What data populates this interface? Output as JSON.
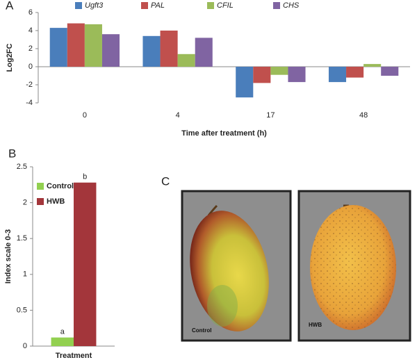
{
  "chart_data": [
    {
      "type": "bar",
      "panel": "A",
      "categories": [
        "0",
        "4",
        "17",
        "48"
      ],
      "series": [
        {
          "name": "Ugft3",
          "color": "#4a7ebb",
          "values": [
            4.3,
            3.4,
            -3.4,
            -1.7
          ]
        },
        {
          "name": "PAL",
          "color": "#c0504d",
          "values": [
            4.8,
            4.0,
            -1.8,
            -1.2
          ]
        },
        {
          "name": "CFIL",
          "color": "#9bbb59",
          "values": [
            4.7,
            1.4,
            -0.9,
            0.3
          ]
        },
        {
          "name": "CHS",
          "color": "#8064a2",
          "values": [
            3.6,
            3.2,
            -1.7,
            -1.0
          ]
        }
      ],
      "ylim": [
        -4,
        6
      ],
      "yticks": [
        -4,
        -2,
        0,
        2,
        4,
        6
      ],
      "y_label": "Log2FC",
      "x_label": "Time after treatment (h)",
      "legend": "top",
      "grid": false
    },
    {
      "type": "bar",
      "panel": "B",
      "categories": [
        null
      ],
      "series": [
        {
          "name": "Control",
          "color": "#92d050",
          "values": [
            0.12
          ],
          "value_labels": [
            "a"
          ]
        },
        {
          "name": "HWB",
          "color": "#a3363b",
          "values": [
            2.28
          ],
          "value_labels": [
            "b"
          ]
        }
      ],
      "ylim": [
        0,
        2.5
      ],
      "yticks": [
        0,
        0.5,
        1,
        1.5,
        2,
        2.5
      ],
      "y_label": "Index scale 0-3",
      "x_label": "Treatment",
      "legend": "upper left",
      "grid": false
    }
  ],
  "photos": {
    "panel": "C",
    "captions": [
      "Control",
      "HWB"
    ]
  }
}
